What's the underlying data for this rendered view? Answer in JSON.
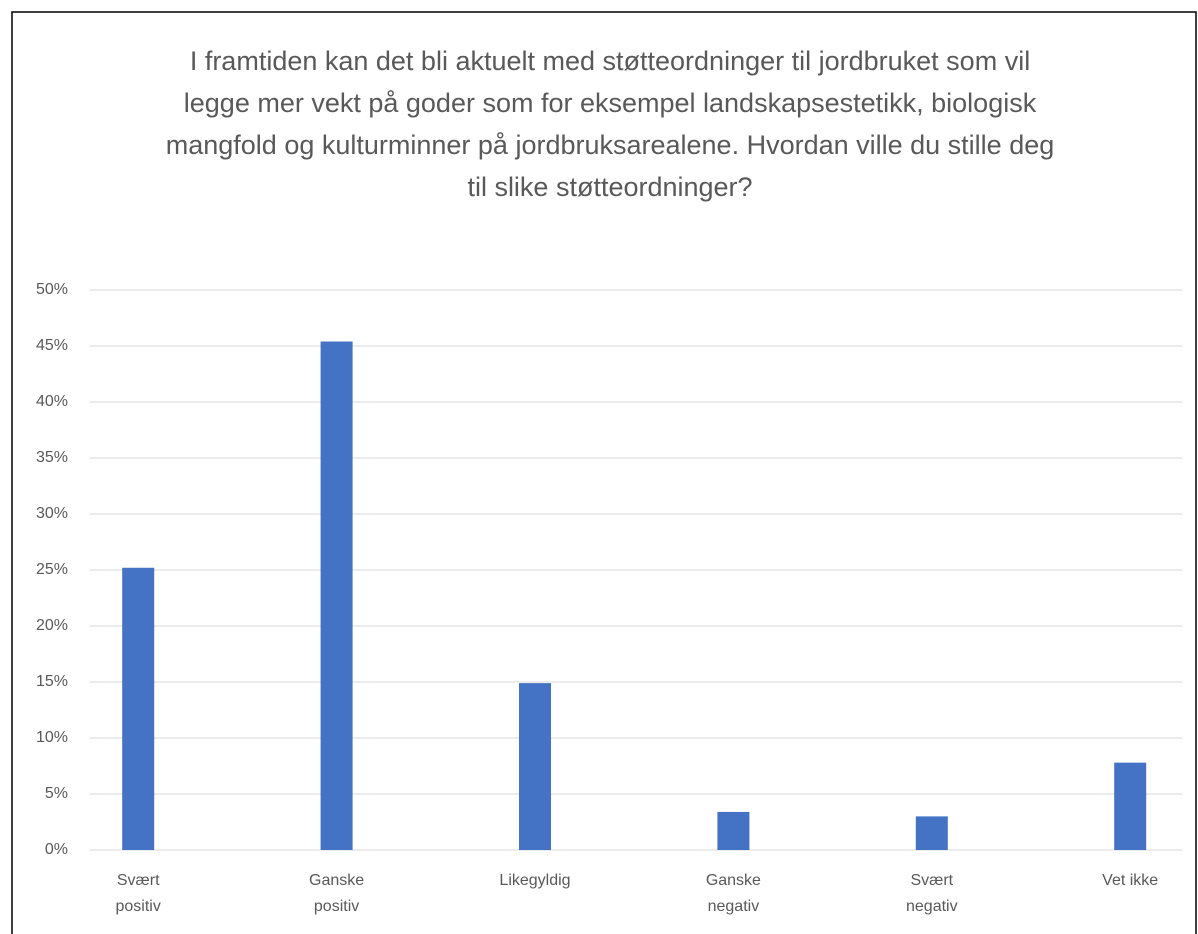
{
  "chart_data": {
    "type": "bar",
    "title": "I framtiden kan det bli aktuelt med støtteordninger til jordbruket som vil legge mer vekt på goder som for eksempel landskapsestetikk, biologisk mangfold og kulturminner på jordbruksarealene. Hvordan ville du stille deg til slike støtteordninger?",
    "categories": [
      "Svært positiv",
      "Ganske positiv",
      "Likegyldig",
      "Ganske negativ",
      "Svært negativ",
      "Vet ikke"
    ],
    "values": [
      25.2,
      45.4,
      14.9,
      3.4,
      3.0,
      7.8
    ],
    "color": "#4472c4",
    "ylim": [
      0,
      50
    ],
    "yticks": [
      {
        "value": 0,
        "label": "0%"
      },
      {
        "value": 5,
        "label": "5%"
      },
      {
        "value": 10,
        "label": "10%"
      },
      {
        "value": 15,
        "label": "15%"
      },
      {
        "value": 20,
        "label": "20%"
      },
      {
        "value": 25,
        "label": "25%"
      },
      {
        "value": 30,
        "label": "30%"
      },
      {
        "value": 35,
        "label": "35%"
      },
      {
        "value": 40,
        "label": "40%"
      },
      {
        "value": 45,
        "label": "45%"
      },
      {
        "value": 50,
        "label": "50%"
      }
    ],
    "grid": true
  }
}
